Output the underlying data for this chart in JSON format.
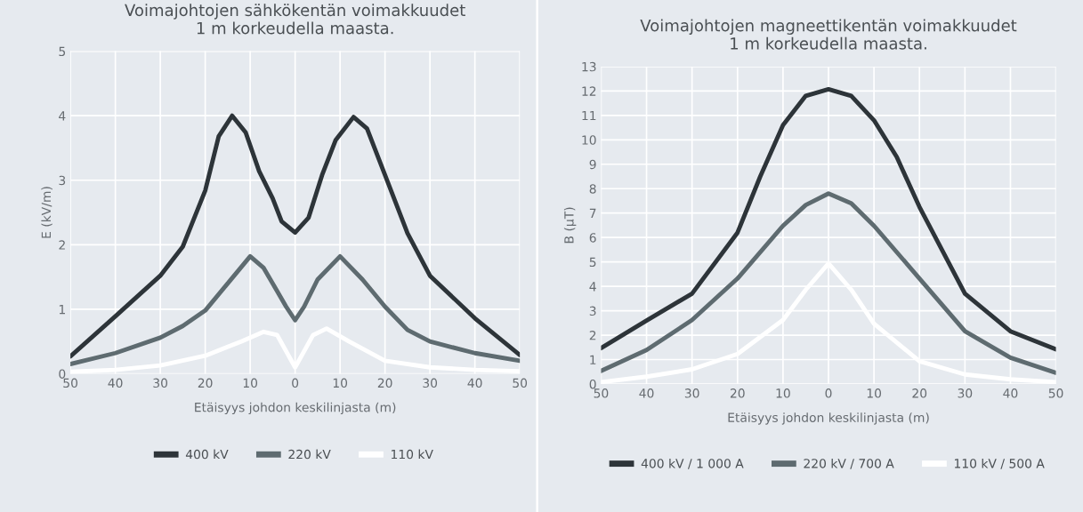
{
  "chart_data": [
    {
      "type": "line",
      "title": "Voimajohtojen sähkökentän voimakkuudet\n1 m korkeudella maasta.",
      "xlabel": "Etäisyys johdon keskilinjasta (m)",
      "ylabel": "E (kV/m)",
      "xlim": [
        -50,
        50
      ],
      "ylim": [
        0,
        5
      ],
      "yticks": [
        0,
        1,
        2,
        3,
        4,
        5
      ],
      "xticks": [
        {
          "value": -50,
          "label": "50"
        },
        {
          "value": -40,
          "label": "40"
        },
        {
          "value": -30,
          "label": "30"
        },
        {
          "value": -20,
          "label": "20"
        },
        {
          "value": -10,
          "label": "10"
        },
        0,
        10,
        20,
        30,
        40,
        50
      ],
      "grid": true,
      "legend": "bottom",
      "marker": "none",
      "line_style": "solid",
      "series": [
        {
          "name": "400 kV",
          "color": "#2d3439",
          "x": [
            -50,
            -40,
            -30,
            -25,
            -20,
            -17,
            -14,
            -11,
            -8,
            -5,
            -3,
            0,
            3,
            6,
            9,
            13,
            16,
            20,
            25,
            30,
            40,
            50
          ],
          "values": [
            0.27,
            0.89,
            1.52,
            1.97,
            2.84,
            3.68,
            4.0,
            3.74,
            3.14,
            2.72,
            2.36,
            2.19,
            2.42,
            3.08,
            3.62,
            3.98,
            3.8,
            3.08,
            2.18,
            1.52,
            0.86,
            0.29
          ]
        },
        {
          "name": "220 kV",
          "color": "#5e6b70",
          "x": [
            -50,
            -40,
            -30,
            -25,
            -20,
            -15,
            -10,
            -7,
            -4,
            -2,
            0,
            2,
            5,
            10,
            15,
            20,
            25,
            30,
            40,
            50
          ],
          "values": [
            0.15,
            0.32,
            0.56,
            0.74,
            0.98,
            1.4,
            1.82,
            1.64,
            1.28,
            1.04,
            0.83,
            1.04,
            1.46,
            1.82,
            1.46,
            1.04,
            0.68,
            0.5,
            0.32,
            0.2
          ]
        },
        {
          "name": "110 kV",
          "color": "#ffffff",
          "x": [
            -50,
            -40,
            -30,
            -20,
            -12,
            -7,
            -4,
            -2,
            0,
            2,
            4,
            7,
            12,
            20,
            30,
            40,
            50
          ],
          "values": [
            0.03,
            0.06,
            0.13,
            0.28,
            0.5,
            0.65,
            0.6,
            0.35,
            0.1,
            0.35,
            0.6,
            0.7,
            0.5,
            0.2,
            0.1,
            0.06,
            0.04
          ]
        }
      ]
    },
    {
      "type": "line",
      "title": "Voimajohtojen magneettikentän voimakkuudet\n1 m korkeudella maasta.",
      "xlabel": "Etäisyys johdon keskilinjasta (m)",
      "ylabel": "B (µT)",
      "xlim": [
        -50,
        50
      ],
      "ylim": [
        0,
        13
      ],
      "yticks": [
        0,
        1,
        2,
        3,
        4,
        5,
        6,
        7,
        8,
        9,
        10,
        11,
        12,
        13
      ],
      "xticks": [
        {
          "value": -50,
          "label": "50"
        },
        {
          "value": -40,
          "label": "40"
        },
        {
          "value": -30,
          "label": "30"
        },
        {
          "value": -20,
          "label": "20"
        },
        {
          "value": -10,
          "label": "10"
        },
        0,
        10,
        20,
        30,
        40,
        50
      ],
      "grid": true,
      "legend": "bottom",
      "marker": "none",
      "line_style": "solid",
      "series": [
        {
          "name": "400 kV / 1 000 A",
          "color": "#2d3439",
          "x": [
            -50,
            -40,
            -30,
            -20,
            -15,
            -10,
            -5,
            0,
            5,
            10,
            15,
            20,
            30,
            40,
            50
          ],
          "values": [
            1.47,
            2.6,
            3.7,
            6.2,
            8.5,
            10.6,
            11.8,
            12.07,
            11.8,
            10.8,
            9.3,
            7.25,
            3.7,
            2.16,
            1.42
          ]
        },
        {
          "name": "220 kV / 700 A",
          "color": "#5e6b70",
          "x": [
            -50,
            -40,
            -30,
            -20,
            -10,
            -5,
            0,
            5,
            10,
            20,
            30,
            40,
            50
          ],
          "values": [
            0.54,
            1.39,
            2.62,
            4.32,
            6.48,
            7.33,
            7.8,
            7.4,
            6.48,
            4.32,
            2.16,
            1.08,
            0.46
          ]
        },
        {
          "name": "110 kV / 500 A",
          "color": "#ffffff",
          "x": [
            -50,
            -40,
            -30,
            -20,
            -10,
            -5,
            0,
            5,
            10,
            20,
            30,
            40,
            50
          ],
          "values": [
            0.08,
            0.3,
            0.6,
            1.23,
            2.62,
            3.86,
            4.94,
            3.86,
            2.47,
            0.93,
            0.39,
            0.19,
            0.08
          ]
        }
      ]
    }
  ]
}
